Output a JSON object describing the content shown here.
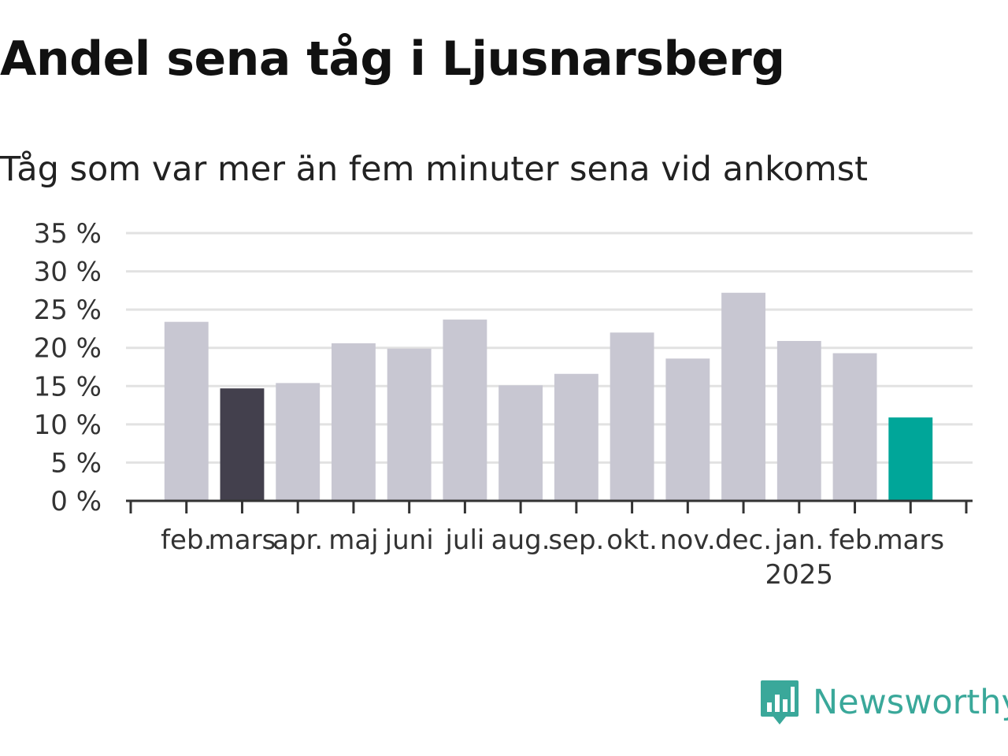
{
  "header": {
    "title": "Andel sena tåg i Ljusnarsberg",
    "subtitle": "Tåg som var mer än fem minuter sena vid ankomst"
  },
  "brand": {
    "name": "Newsworthy",
    "icon": "newsworthy-logo-icon",
    "color": "#3aa89a"
  },
  "chart_data": {
    "type": "bar",
    "categories": [
      "feb.",
      "mars",
      "apr.",
      "maj",
      "juni",
      "juli",
      "aug.",
      "sep.",
      "okt.",
      "nov.",
      "dec.",
      "jan.",
      "feb.",
      "mars"
    ],
    "year_label": "2025",
    "year_label_at_index": 11,
    "values": [
      23.4,
      14.7,
      15.4,
      20.6,
      19.9,
      23.7,
      15.1,
      16.6,
      22.0,
      18.6,
      27.2,
      20.9,
      19.3,
      10.9
    ],
    "value_format": "{v} %",
    "ylim": [
      0,
      35
    ],
    "yticks": [
      0,
      5,
      10,
      15,
      20,
      25,
      30,
      35
    ],
    "grid": true,
    "legend": "none",
    "colors": {
      "default": "#c8c7d2",
      "highlight_same_month_last_year": "#43404d",
      "highlight_latest": "#00a699",
      "gridline": "#e2e2e2",
      "axis": "#333333"
    },
    "highlight_indices": {
      "1": "highlight_same_month_last_year",
      "13": "highlight_latest"
    }
  }
}
